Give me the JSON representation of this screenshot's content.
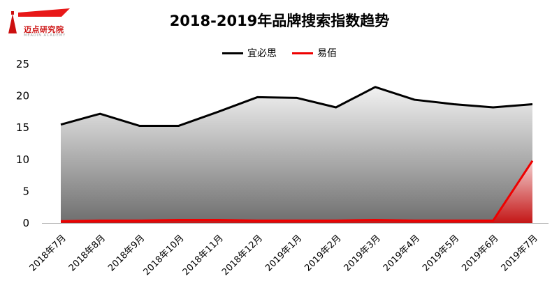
{
  "logo": {
    "text": "迈点研究院",
    "subtext": "MEADIN ACADEMY",
    "color": "#cc1010"
  },
  "chart_data": {
    "type": "area",
    "title": "2018-2019年品牌搜索指数趋势",
    "xlabel": "",
    "ylabel": "",
    "ylim": [
      0,
      25
    ],
    "yticks": [
      0,
      5,
      10,
      15,
      20,
      25
    ],
    "legend_position": "top",
    "categories": [
      "2018年7月",
      "2018年8月",
      "2018年9月",
      "2018年10月",
      "2018年11月",
      "2018年12月",
      "2019年1月",
      "2019年2月",
      "2019年3月",
      "2019年4月",
      "2019年5月",
      "2019年6月",
      "2019年7月"
    ],
    "series": [
      {
        "name": "宜必思",
        "color": "#000000",
        "values": [
          15.5,
          17.2,
          15.3,
          15.3,
          17.5,
          19.8,
          19.7,
          18.2,
          21.4,
          19.4,
          18.7,
          18.2,
          18.7
        ]
      },
      {
        "name": "易佰",
        "color": "#ee0000",
        "values": [
          0.3,
          0.4,
          0.4,
          0.5,
          0.5,
          0.4,
          0.4,
          0.4,
          0.5,
          0.4,
          0.4,
          0.4,
          9.8
        ]
      }
    ]
  }
}
